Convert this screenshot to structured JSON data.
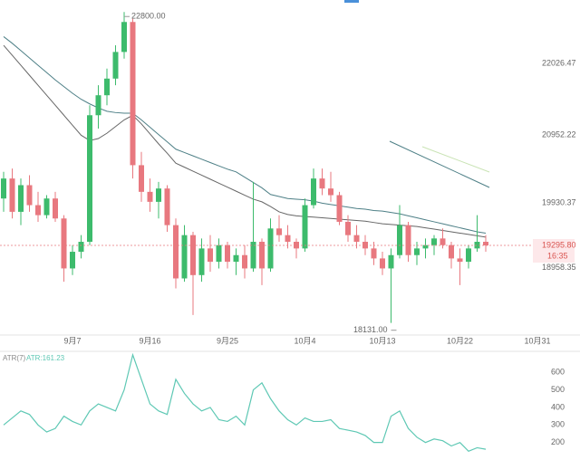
{
  "chart_data": [
    {
      "type": "candlestick",
      "categories": [
        null,
        null,
        null,
        null,
        null,
        null,
        null,
        null,
        "9月7",
        null,
        null,
        null,
        null,
        null,
        null,
        null,
        null,
        "9月16",
        null,
        null,
        null,
        null,
        null,
        null,
        null,
        null,
        "9月25",
        null,
        null,
        null,
        null,
        null,
        null,
        null,
        null,
        "10月4",
        null,
        null,
        null,
        null,
        null,
        null,
        null,
        null,
        "10月13",
        null,
        null,
        null,
        null,
        null,
        null,
        null,
        null,
        "10月22",
        null,
        null,
        null,
        null,
        null,
        null,
        null,
        null,
        "10月31"
      ],
      "open": [
        20000,
        20300,
        19800,
        20200,
        19900,
        19750,
        20000,
        19700,
        18950,
        19200,
        19350,
        21250,
        21550,
        21800,
        22200,
        22650,
        20500,
        20100,
        19950,
        20150,
        19600,
        18800,
        19450,
        18850,
        19250,
        19050,
        19300,
        19050,
        19150,
        18950,
        19350,
        18950,
        19550,
        19450,
        19350,
        19250,
        19900,
        20300,
        20150,
        20050,
        19650,
        19450,
        19350,
        19250,
        19100,
        18950,
        19150,
        19600,
        19150,
        19250,
        19300,
        19400,
        19300,
        19100,
        19050,
        19250,
        19350,
        null,
        null,
        null,
        null,
        null,
        null
      ],
      "high": [
        20400,
        20450,
        20300,
        20350,
        20100,
        20050,
        20100,
        19750,
        19300,
        19450,
        21400,
        21700,
        21950,
        22300,
        22800,
        22700,
        20700,
        20300,
        20250,
        20200,
        19700,
        19600,
        19500,
        19400,
        19450,
        19400,
        19350,
        19250,
        19300,
        20250,
        19400,
        19700,
        19750,
        19600,
        19400,
        20000,
        20450,
        20450,
        20400,
        20100,
        19750,
        19600,
        19450,
        19350,
        19200,
        19250,
        19900,
        19650,
        19350,
        19400,
        19450,
        19550,
        19350,
        19250,
        19300,
        19750,
        19450,
        null,
        null,
        null,
        null,
        null,
        null
      ],
      "low": [
        19800,
        19700,
        19600,
        19800,
        19650,
        19700,
        19650,
        18750,
        18850,
        19100,
        19300,
        21050,
        21400,
        21700,
        22100,
        20300,
        19950,
        19800,
        19700,
        19500,
        18650,
        18750,
        18250,
        18750,
        18900,
        18950,
        18950,
        18850,
        18800,
        18900,
        18700,
        18900,
        19350,
        19250,
        19100,
        19200,
        19850,
        20050,
        19950,
        19600,
        19350,
        19250,
        19150,
        19000,
        18850,
        18131,
        19100,
        19050,
        19000,
        19100,
        19150,
        19250,
        18950,
        18700,
        18950,
        19200,
        19200,
        null,
        null,
        null,
        null,
        null,
        null
      ],
      "close": [
        20300,
        19800,
        20200,
        19900,
        19750,
        20000,
        19700,
        18950,
        19200,
        19350,
        21250,
        21550,
        21800,
        22200,
        22650,
        20500,
        20100,
        19950,
        20150,
        19600,
        18800,
        19450,
        18850,
        19250,
        19050,
        19300,
        19050,
        19150,
        18950,
        19350,
        18950,
        19550,
        19450,
        19350,
        19250,
        19900,
        20300,
        20150,
        20050,
        19650,
        19450,
        19350,
        19250,
        19100,
        18950,
        19150,
        19600,
        19150,
        19250,
        19300,
        19400,
        19300,
        19100,
        19050,
        19250,
        19350,
        19295.8,
        null,
        null,
        null,
        null,
        null,
        null
      ],
      "lines": [
        {
          "color": "#4d7f86",
          "values": [
            22430,
            22330,
            22220,
            22110,
            22000,
            21890,
            21780,
            21680,
            21580,
            21490,
            21420,
            21360,
            21310,
            21290,
            21280,
            21280,
            21180,
            21070,
            20960,
            20850,
            20740,
            20690,
            20640,
            20590,
            20540,
            20490,
            20440,
            20400,
            20320,
            20240,
            20160,
            20060,
            20030,
            20000,
            19990,
            19980,
            19960,
            19930,
            19910,
            19890,
            19870,
            19850,
            19840,
            19820,
            19810,
            19790,
            19770,
            19740,
            19710,
            19680,
            19650,
            19620,
            19590,
            19560,
            19530,
            19500,
            19480,
            null,
            null,
            null,
            null,
            null,
            null
          ]
        },
        {
          "color": "#666666",
          "values": [
            22300,
            22150,
            22000,
            21850,
            21700,
            21550,
            21400,
            21250,
            21100,
            20950,
            20870,
            20900,
            20980,
            21080,
            21180,
            21250,
            21120,
            20970,
            20820,
            20680,
            20530,
            20470,
            20410,
            20350,
            20290,
            20230,
            20170,
            20110,
            20050,
            19990,
            19950,
            19880,
            19800,
            19760,
            19740,
            19730,
            19720,
            19710,
            19700,
            19690,
            19680,
            19670,
            19660,
            19640,
            19620,
            19610,
            19600,
            19590,
            19580,
            19560,
            19540,
            19520,
            19500,
            19480,
            19460,
            19440,
            19420,
            null,
            null,
            null,
            null,
            null,
            null
          ]
        }
      ],
      "up_color": "#3dbb6c",
      "down_color": "#e8787f",
      "ylim": [
        17950,
        22980
      ],
      "yticks": [
        18958.35,
        19930.37,
        20952.22,
        22026.47
      ],
      "annotations": [
        {
          "text": "22800.00",
          "value": 22800
        },
        {
          "text": "18131.00",
          "value": 18131
        }
      ],
      "last_price": {
        "value": 19295.8,
        "label": "19295.80"
      },
      "last_time": "16:35"
    },
    {
      "type": "line",
      "title": "ATR(7)",
      "legend": "ATR:161.23",
      "color": "#5ec8b4",
      "values": [
        300,
        340,
        380,
        360,
        300,
        260,
        280,
        350,
        320,
        300,
        380,
        420,
        400,
        380,
        500,
        700,
        560,
        420,
        380,
        360,
        560,
        480,
        420,
        380,
        400,
        330,
        320,
        350,
        300,
        500,
        540,
        450,
        380,
        330,
        300,
        340,
        320,
        320,
        330,
        280,
        270,
        260,
        240,
        200,
        200,
        350,
        380,
        280,
        230,
        200,
        220,
        210,
        180,
        200,
        150,
        170,
        161.23,
        null,
        null,
        null,
        null,
        null,
        null
      ],
      "ylim": [
        100,
        720
      ],
      "yticks": [
        200,
        300,
        400,
        500,
        600
      ]
    }
  ]
}
